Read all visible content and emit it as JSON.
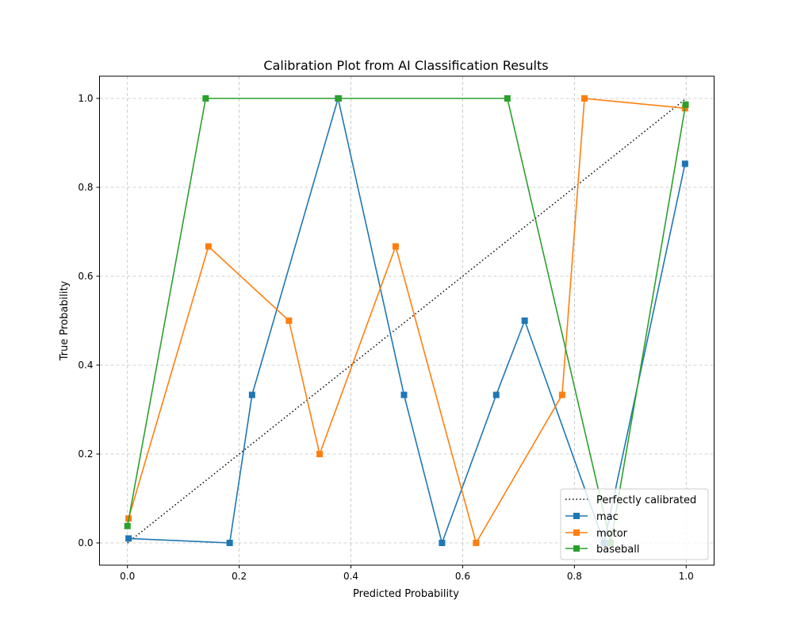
{
  "chart_data": {
    "type": "line",
    "title": "Calibration Plot from AI Classification Results",
    "xlabel": "Predicted Probability",
    "ylabel": "True Probability",
    "xlim": [
      -0.05,
      1.05
    ],
    "ylim": [
      -0.05,
      1.05
    ],
    "xticks": [
      "0.0",
      "0.2",
      "0.4",
      "0.6",
      "0.8",
      "1.0"
    ],
    "yticks": [
      "0.0",
      "0.2",
      "0.4",
      "0.6",
      "0.8",
      "1.0"
    ],
    "grid": true,
    "legend_position": "bottom-right",
    "reference_line": {
      "name": "Perfectly calibrated",
      "x": [
        0,
        1
      ],
      "y": [
        0,
        1
      ],
      "color": "#000000",
      "style": "dotted"
    },
    "series": [
      {
        "name": "mac",
        "color": "#1f77b4",
        "marker": "square",
        "x": [
          0.002,
          0.183,
          0.223,
          0.377,
          0.495,
          0.563,
          0.66,
          0.711,
          0.853,
          0.998
        ],
        "y": [
          0.01,
          0.0,
          0.333,
          1.0,
          0.333,
          0.0,
          0.333,
          0.5,
          0.0,
          0.853
        ]
      },
      {
        "name": "motor",
        "color": "#ff7f0e",
        "marker": "square",
        "x": [
          0.002,
          0.145,
          0.289,
          0.344,
          0.48,
          0.624,
          0.778,
          0.818,
          0.998
        ],
        "y": [
          0.055,
          0.667,
          0.5,
          0.2,
          0.667,
          0.0,
          0.333,
          1.0,
          0.978
        ]
      },
      {
        "name": "baseball",
        "color": "#2ca02c",
        "marker": "square",
        "x": [
          0.0,
          0.14,
          0.378,
          0.68,
          0.865,
          0.999
        ],
        "y": [
          0.038,
          1.0,
          1.0,
          1.0,
          0.0,
          0.986
        ]
      }
    ]
  }
}
